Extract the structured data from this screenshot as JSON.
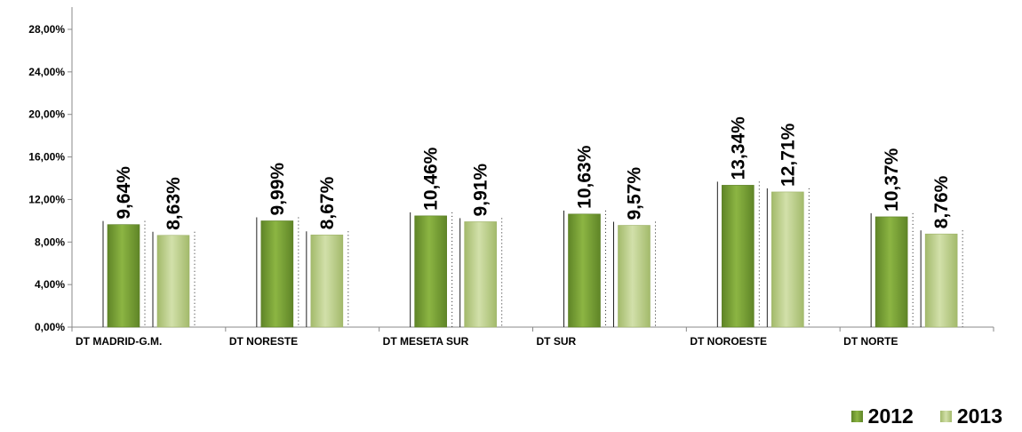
{
  "chart_data": {
    "type": "bar",
    "categories": [
      "DT MADRID-G.M.",
      "DT NORESTE",
      "DT MESETA SUR",
      "DT SUR",
      "DT NOROESTE",
      "DT NORTE"
    ],
    "series": [
      {
        "name": "2012",
        "values": [
          9.64,
          9.99,
          10.46,
          10.63,
          13.34,
          10.37
        ],
        "color": "#7ea63a"
      },
      {
        "name": "2013",
        "values": [
          8.63,
          8.67,
          9.91,
          9.57,
          12.71,
          8.76
        ],
        "color": "#bccf8c"
      }
    ],
    "data_labels": [
      [
        "9,64%",
        "9,99%",
        "10,46%",
        "10,63%",
        "13,34%",
        "10,37%"
      ],
      [
        "8,63%",
        "8,67%",
        "9,91%",
        "9,57%",
        "12,71%",
        "8,76%"
      ]
    ],
    "ylim": [
      0,
      28
    ],
    "yticks": [
      0,
      4,
      8,
      12,
      16,
      20,
      24,
      28
    ],
    "ytick_labels": [
      "0,00%",
      "4,00%",
      "8,00%",
      "12,00%",
      "16,00%",
      "20,00%",
      "24,00%",
      "28,00%"
    ],
    "grid": false,
    "legend_position": "bottom-right"
  },
  "legend": {
    "items": [
      {
        "label": "2012",
        "color": "#7ea63a"
      },
      {
        "label": "2013",
        "color": "#bccf8c"
      }
    ]
  }
}
